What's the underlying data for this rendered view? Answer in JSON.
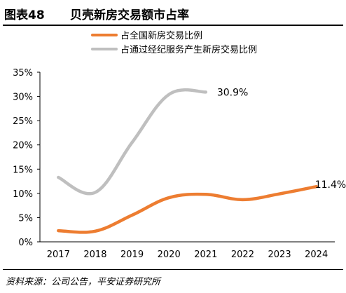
{
  "figure": {
    "number": "图表48",
    "title": "贝壳新房交易额市占率",
    "source": "资料来源：公司公告，平安证券研究所"
  },
  "chart_data": {
    "type": "line",
    "x": [
      2017,
      2018,
      2019,
      2020,
      2021,
      2022,
      2023,
      2024
    ],
    "ylim": [
      0,
      35
    ],
    "yticks": [
      "0%",
      "5%",
      "10%",
      "15%",
      "20%",
      "25%",
      "30%",
      "35%"
    ],
    "legend_position": "top",
    "grid": false,
    "series": [
      {
        "name": "占全国新房交易比例",
        "color": "#ED7D31",
        "values": [
          2.3,
          2.2,
          5.5,
          9.1,
          9.8,
          8.7,
          9.9,
          11.4
        ]
      },
      {
        "name": "占通过经纪服务产生新房交易比例",
        "color": "#BFBFBF",
        "values": [
          13.3,
          10.2,
          20.5,
          30.4,
          30.9,
          null,
          null,
          null
        ]
      }
    ],
    "annotations": [
      {
        "series": 1,
        "index": 4,
        "text": "30.9%"
      },
      {
        "series": 0,
        "index": 7,
        "text": "11.4%"
      }
    ]
  }
}
